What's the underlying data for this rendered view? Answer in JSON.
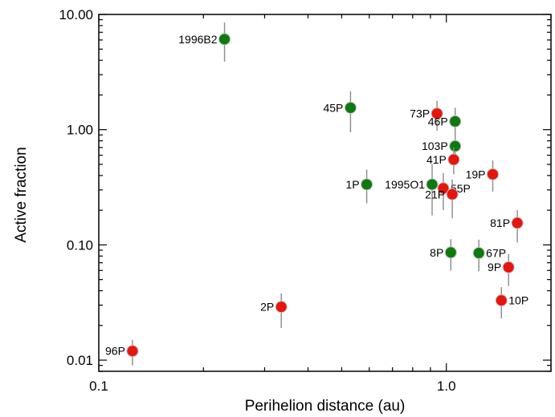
{
  "chart_data": {
    "type": "scatter",
    "xlabel": "Perihelion distance (au)",
    "ylabel": "Active fraction",
    "xscale": "log",
    "yscale": "log",
    "xlim": [
      0.1,
      2.0
    ],
    "ylim": [
      0.008,
      10.0
    ],
    "x_ticks": [
      {
        "value": 0.1,
        "label": "0.1"
      },
      {
        "value": 1.0,
        "label": "1.0"
      }
    ],
    "y_ticks": [
      {
        "value": 0.01,
        "label": "0.01"
      },
      {
        "value": 0.1,
        "label": "0.10"
      },
      {
        "value": 1.0,
        "label": "1.00"
      },
      {
        "value": 10.0,
        "label": "10.00"
      }
    ],
    "grid": false,
    "colors": {
      "green": "#0d7a0d",
      "red": "#e8140e",
      "errorbar": "#8a8a8a"
    },
    "points": [
      {
        "label": "1996B2",
        "x": 0.23,
        "y": 6.1,
        "ylo": 3.9,
        "yhi": 8.5,
        "color": "green",
        "label_side": "left"
      },
      {
        "label": "45P",
        "x": 0.53,
        "y": 1.55,
        "ylo": 0.95,
        "yhi": 2.15,
        "color": "green",
        "label_side": "left"
      },
      {
        "label": "73P",
        "x": 0.94,
        "y": 1.38,
        "ylo": 0.98,
        "yhi": 1.78,
        "color": "red",
        "label_side": "left"
      },
      {
        "label": "46P",
        "x": 1.06,
        "y": 1.18,
        "ylo": 0.85,
        "yhi": 1.55,
        "color": "green",
        "label_side": "left"
      },
      {
        "label": "103P",
        "x": 1.06,
        "y": 0.72,
        "ylo": 0.54,
        "yhi": 0.92,
        "color": "green",
        "label_side": "left"
      },
      {
        "label": "41P",
        "x": 1.05,
        "y": 0.55,
        "ylo": 0.41,
        "yhi": 0.7,
        "color": "red",
        "label_side": "left"
      },
      {
        "label": "19P",
        "x": 1.36,
        "y": 0.41,
        "ylo": 0.29,
        "yhi": 0.54,
        "color": "red",
        "label_side": "left"
      },
      {
        "label": "1P",
        "x": 0.59,
        "y": 0.335,
        "ylo": 0.23,
        "yhi": 0.45,
        "color": "green",
        "label_side": "left"
      },
      {
        "label": "1995O1",
        "x": 0.91,
        "y": 0.335,
        "ylo": 0.18,
        "yhi": 0.5,
        "color": "green",
        "label_side": "left"
      },
      {
        "label": "55P",
        "x": 0.98,
        "y": 0.31,
        "ylo": 0.2,
        "yhi": 0.42,
        "color": "red",
        "label_side": "right"
      },
      {
        "label": "21P",
        "x": 1.04,
        "y": 0.275,
        "ylo": 0.17,
        "yhi": 0.37,
        "color": "red",
        "label_side": "left"
      },
      {
        "label": "81P",
        "x": 1.6,
        "y": 0.155,
        "ylo": 0.105,
        "yhi": 0.2,
        "color": "red",
        "label_side": "left"
      },
      {
        "label": "8P",
        "x": 1.03,
        "y": 0.086,
        "ylo": 0.06,
        "yhi": 0.112,
        "color": "green",
        "label_side": "left"
      },
      {
        "label": "67P",
        "x": 1.24,
        "y": 0.085,
        "ylo": 0.059,
        "yhi": 0.111,
        "color": "green",
        "label_side": "right"
      },
      {
        "label": "9P",
        "x": 1.51,
        "y": 0.064,
        "ylo": 0.044,
        "yhi": 0.083,
        "color": "red",
        "label_side": "left"
      },
      {
        "label": "10P",
        "x": 1.44,
        "y": 0.033,
        "ylo": 0.023,
        "yhi": 0.043,
        "color": "red",
        "label_side": "right"
      },
      {
        "label": "2P",
        "x": 0.335,
        "y": 0.029,
        "ylo": 0.019,
        "yhi": 0.038,
        "color": "red",
        "label_side": "left"
      },
      {
        "label": "96P",
        "x": 0.125,
        "y": 0.012,
        "ylo": 0.009,
        "yhi": 0.015,
        "color": "red",
        "label_side": "left"
      }
    ]
  }
}
